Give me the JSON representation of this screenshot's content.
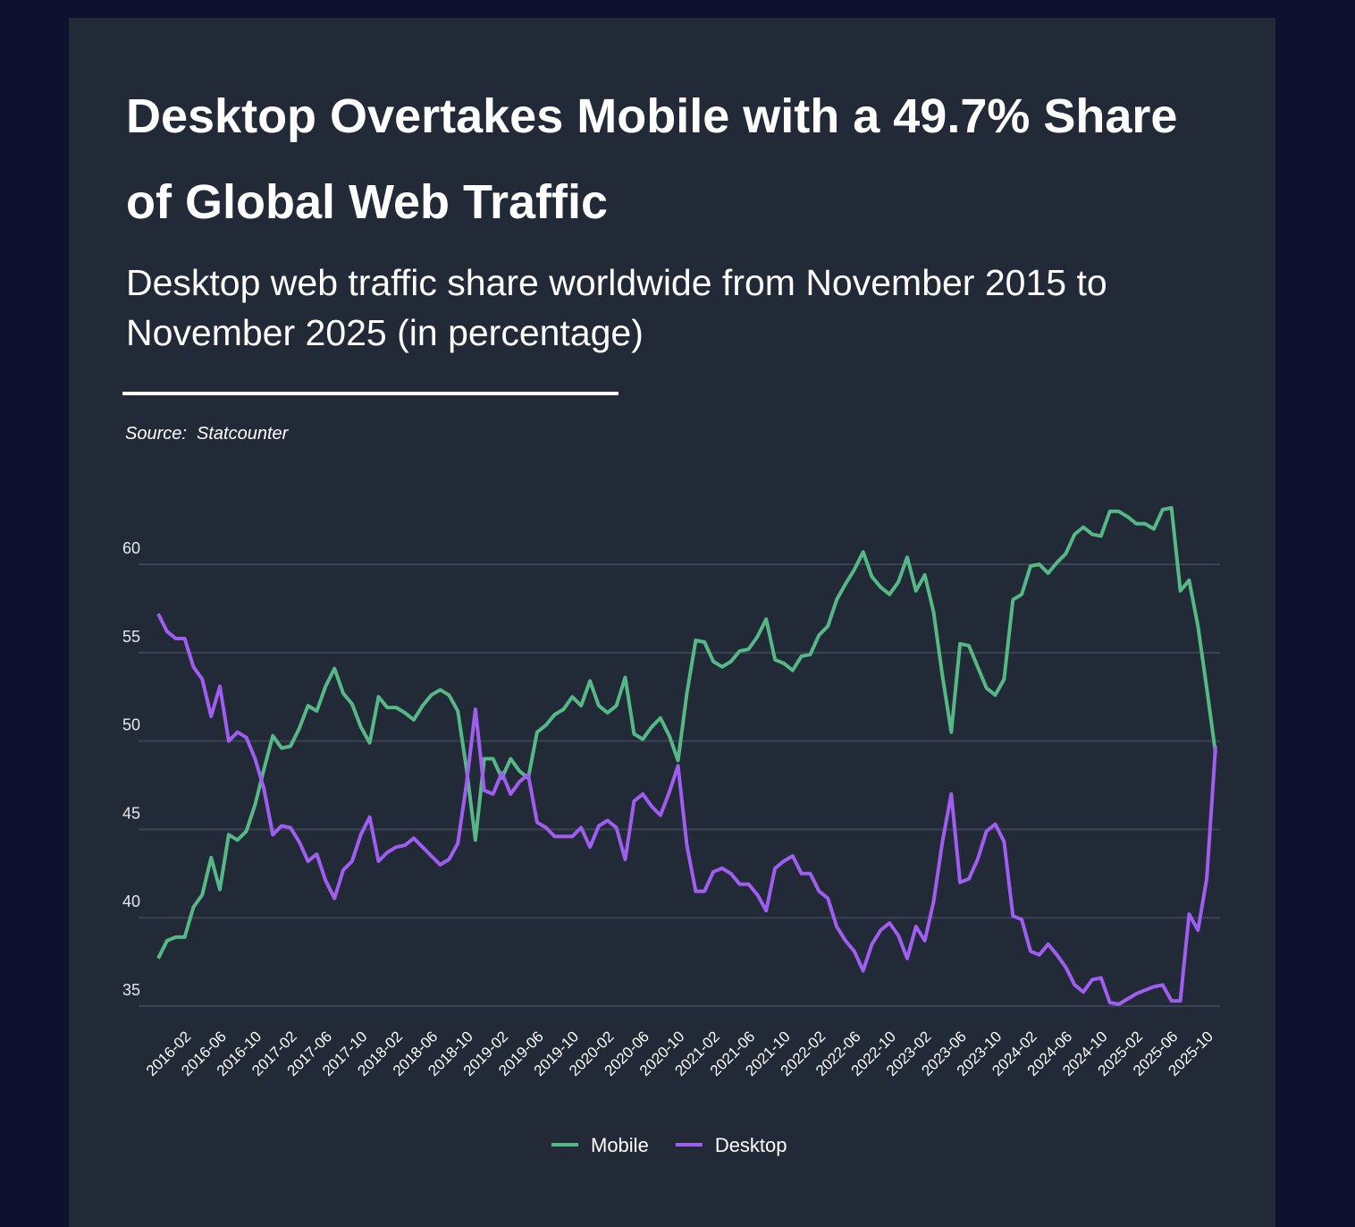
{
  "chart_data": {
    "type": "line",
    "title": "Desktop Overtakes Mobile with a 49.7% Share of Global Web Traffic",
    "subtitle": "Desktop web traffic share worldwide from November 2015 to November 2025 (in percentage)",
    "source": "Source:  Statcounter",
    "categories": [
      null,
      null,
      null,
      "2016-02",
      null,
      null,
      null,
      "2016-06",
      null,
      null,
      null,
      "2016-10",
      null,
      null,
      null,
      "2017-02",
      null,
      null,
      null,
      "2017-06",
      null,
      null,
      null,
      "2017-10",
      null,
      null,
      null,
      "2018-02",
      null,
      null,
      null,
      "2018-06",
      null,
      null,
      null,
      "2018-10",
      null,
      null,
      null,
      "2019-02",
      null,
      null,
      null,
      "2019-06",
      null,
      null,
      null,
      "2019-10",
      null,
      null,
      null,
      "2020-02",
      null,
      null,
      null,
      "2020-06",
      null,
      null,
      null,
      "2020-10",
      null,
      null,
      null,
      "2021-02",
      null,
      null,
      null,
      "2021-06",
      null,
      null,
      null,
      "2021-10",
      null,
      null,
      null,
      "2022-02",
      null,
      null,
      null,
      "2022-06",
      null,
      null,
      null,
      "2022-10",
      null,
      null,
      null,
      "2023-02",
      null,
      null,
      null,
      "2023-06",
      null,
      null,
      null,
      "2023-10",
      null,
      null,
      null,
      "2024-02",
      null,
      null,
      null,
      "2024-06",
      null,
      null,
      null,
      "2024-10",
      null,
      null,
      null,
      "2025-02",
      null,
      null,
      null,
      "2025-06",
      null,
      null,
      null,
      "2025-10",
      null
    ],
    "series": [
      {
        "name": "Mobile",
        "color": "#55b886",
        "values": [
          37.7,
          38.7,
          38.9,
          38.9,
          40.6,
          41.3,
          43.4,
          41.6,
          44.7,
          44.4,
          44.9,
          46.4,
          48.4,
          50.3,
          49.6,
          49.7,
          50.7,
          52.0,
          51.7,
          53.1,
          54.1,
          52.7,
          52.1,
          50.8,
          49.9,
          52.5,
          51.9,
          51.9,
          51.6,
          51.2,
          52.0,
          52.6,
          52.9,
          52.6,
          51.7,
          48.4,
          44.4,
          49.0,
          49.0,
          47.9,
          49.0,
          48.3,
          47.9,
          50.5,
          50.9,
          51.5,
          51.8,
          52.5,
          52.0,
          53.4,
          52.0,
          51.6,
          52.0,
          53.6,
          50.4,
          50.1,
          50.8,
          51.3,
          50.3,
          48.9,
          52.7,
          55.7,
          55.6,
          54.5,
          54.2,
          54.5,
          55.1,
          55.2,
          55.9,
          56.9,
          54.6,
          54.4,
          54.0,
          54.8,
          54.9,
          56.0,
          56.5,
          58.0,
          58.9,
          59.7,
          60.7,
          59.3,
          58.7,
          58.3,
          59.0,
          60.4,
          58.5,
          59.4,
          57.3,
          53.7,
          50.5,
          55.5,
          55.4,
          54.2,
          53.0,
          52.6,
          53.5,
          58.0,
          58.3,
          59.9,
          60.0,
          59.5,
          60.1,
          60.6,
          61.7,
          62.1,
          61.7,
          61.6,
          63.0,
          63.0,
          62.7,
          62.3,
          62.3,
          62.0,
          63.1,
          63.2,
          58.5,
          59.1,
          56.5,
          53.0,
          49.3
        ]
      },
      {
        "name": "Desktop",
        "color": "#a05ef0",
        "values": [
          57.2,
          56.2,
          55.8,
          55.8,
          54.2,
          53.5,
          51.4,
          53.1,
          50.0,
          50.5,
          50.2,
          49.0,
          47.3,
          44.7,
          45.2,
          45.1,
          44.3,
          43.2,
          43.6,
          42.1,
          41.1,
          42.7,
          43.2,
          44.7,
          45.7,
          43.2,
          43.7,
          44.0,
          44.1,
          44.5,
          44.0,
          43.5,
          43.0,
          43.3,
          44.2,
          47.6,
          51.8,
          47.2,
          47.0,
          48.2,
          47.0,
          47.7,
          48.1,
          45.4,
          45.1,
          44.6,
          44.6,
          44.6,
          45.1,
          44.0,
          45.2,
          45.5,
          45.1,
          43.3,
          46.6,
          47.0,
          46.3,
          45.8,
          47.1,
          48.6,
          44.1,
          41.5,
          41.5,
          42.6,
          42.8,
          42.5,
          41.9,
          41.9,
          41.3,
          40.4,
          42.8,
          43.2,
          43.5,
          42.5,
          42.5,
          41.5,
          41.1,
          39.5,
          38.7,
          38.1,
          37.0,
          38.5,
          39.3,
          39.7,
          39.0,
          37.7,
          39.5,
          38.7,
          40.9,
          44.3,
          47.0,
          42.0,
          42.2,
          43.3,
          44.9,
          45.3,
          44.3,
          40.1,
          39.9,
          38.1,
          37.9,
          38.5,
          37.9,
          37.2,
          36.2,
          35.8,
          36.5,
          36.6,
          35.2,
          35.1,
          35.4,
          35.7,
          35.9,
          36.1,
          36.2,
          35.3,
          35.3,
          40.2,
          39.3,
          42.2,
          49.7
        ]
      }
    ],
    "ylim": [
      35,
      64
    ],
    "yticks": [
      35,
      40,
      45,
      50,
      55,
      60
    ],
    "grid": true
  }
}
